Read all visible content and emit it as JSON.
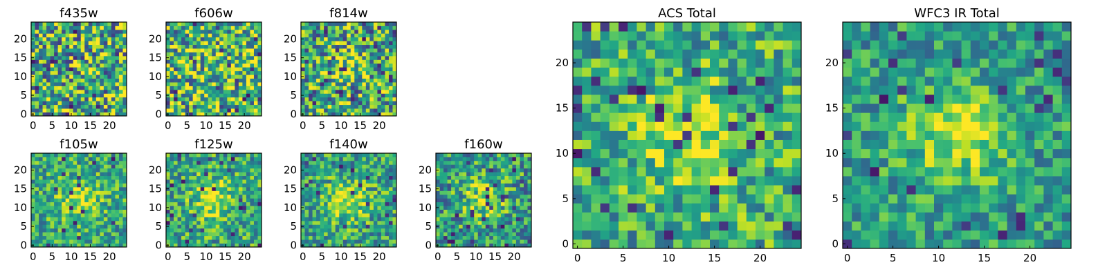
{
  "chart_data": [
    {
      "type": "heatmap",
      "title": "f435w",
      "grid_size": 25,
      "xlim": [
        0,
        24
      ],
      "ylim": [
        0,
        24
      ],
      "xticks": [
        0,
        5,
        10,
        15,
        20
      ],
      "yticks": [
        0,
        5,
        10,
        15,
        20
      ],
      "colormap": "viridis",
      "seed": 11,
      "noise": 0.9,
      "blob": 0.0,
      "bias": 0.62
    },
    {
      "type": "heatmap",
      "title": "f606w",
      "grid_size": 25,
      "xlim": [
        0,
        24
      ],
      "ylim": [
        0,
        24
      ],
      "xticks": [
        0,
        5,
        10,
        15,
        20
      ],
      "yticks": [
        0,
        5,
        10,
        15,
        20
      ],
      "colormap": "viridis",
      "seed": 23,
      "noise": 0.85,
      "blob": 0.0,
      "bias": 0.65
    },
    {
      "type": "heatmap",
      "title": "f814w",
      "grid_size": 25,
      "xlim": [
        0,
        24
      ],
      "ylim": [
        0,
        24
      ],
      "xticks": [
        0,
        5,
        10,
        15,
        20
      ],
      "yticks": [
        0,
        5,
        10,
        15,
        20
      ],
      "colormap": "viridis",
      "seed": 37,
      "noise": 0.85,
      "blob": 0.25,
      "bias": 0.58
    },
    {
      "type": "heatmap",
      "title": "f105w",
      "grid_size": 25,
      "xlim": [
        0,
        24
      ],
      "ylim": [
        0,
        24
      ],
      "xticks": [
        0,
        5,
        10,
        15,
        20
      ],
      "yticks": [
        0,
        5,
        10,
        15,
        20
      ],
      "colormap": "viridis",
      "seed": 41,
      "noise": 0.55,
      "blob": 0.3,
      "bias": 0.6
    },
    {
      "type": "heatmap",
      "title": "f125w",
      "grid_size": 25,
      "xlim": [
        0,
        24
      ],
      "ylim": [
        0,
        24
      ],
      "xticks": [
        0,
        5,
        10,
        15,
        20
      ],
      "yticks": [
        0,
        5,
        10,
        15,
        20
      ],
      "colormap": "viridis",
      "seed": 53,
      "noise": 0.6,
      "blob": 0.3,
      "bias": 0.6
    },
    {
      "type": "heatmap",
      "title": "f140w",
      "grid_size": 25,
      "xlim": [
        0,
        24
      ],
      "ylim": [
        0,
        24
      ],
      "xticks": [
        0,
        5,
        10,
        15,
        20
      ],
      "yticks": [
        0,
        5,
        10,
        15,
        20
      ],
      "colormap": "viridis",
      "seed": 67,
      "noise": 0.6,
      "blob": 0.3,
      "bias": 0.58
    },
    {
      "type": "heatmap",
      "title": "f160w",
      "grid_size": 25,
      "xlim": [
        0,
        24
      ],
      "ylim": [
        0,
        24
      ],
      "xticks": [
        0,
        5,
        10,
        15,
        20
      ],
      "yticks": [
        0,
        5,
        10,
        15,
        20
      ],
      "colormap": "viridis",
      "seed": 79,
      "noise": 0.65,
      "blob": 0.3,
      "bias": 0.55
    },
    {
      "type": "heatmap",
      "title": "ACS Total",
      "grid_size": 25,
      "xlim": [
        0,
        24
      ],
      "ylim": [
        0,
        24
      ],
      "xticks": [
        0,
        5,
        10,
        15,
        20
      ],
      "yticks": [
        0,
        5,
        10,
        15,
        20
      ],
      "colormap": "viridis",
      "seed": 97,
      "noise": 0.6,
      "blob": 0.3,
      "bias": 0.62
    },
    {
      "type": "heatmap",
      "title": "WFC3 IR Total",
      "grid_size": 25,
      "xlim": [
        0,
        24
      ],
      "ylim": [
        0,
        24
      ],
      "xticks": [
        0,
        5,
        10,
        15,
        20
      ],
      "yticks": [
        0,
        5,
        10,
        15,
        20
      ],
      "colormap": "viridis",
      "seed": 113,
      "noise": 0.5,
      "blob": 0.35,
      "bias": 0.55
    }
  ]
}
